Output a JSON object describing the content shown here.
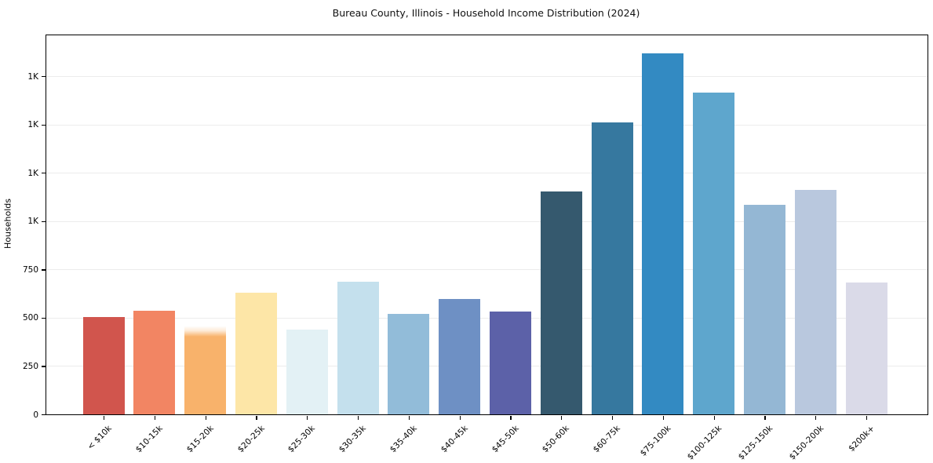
{
  "title": "Bureau County, Illinois - Household Income Distribution (2024)",
  "ylabel": "Households",
  "chart_data": {
    "type": "bar",
    "title": "Bureau County, Illinois - Household Income Distribution (2024)",
    "xlabel": "",
    "ylabel": "Households",
    "categories": [
      "< $10k",
      "$10-15k",
      "$15-20k",
      "$20-25k",
      "$25-30k",
      "$30-35k",
      "$35-40k",
      "$40-45k",
      "$45-50k",
      "$50-60k",
      "$60-75k",
      "$75-100k",
      "$100-125k",
      "$125-150k",
      "$150-200k",
      "$200k+"
    ],
    "values": [
      503,
      537,
      455,
      629,
      440,
      688,
      522,
      597,
      532,
      1152,
      1511,
      1869,
      1666,
      1083,
      1161,
      684
    ],
    "bar_colors": [
      "#d1554d",
      "#f28563",
      "#f8b26b",
      "#fde6a7",
      "#e3f1f5",
      "#c4e0ed",
      "#92bcd9",
      "#6e90c4",
      "#5c61a8",
      "#35596e",
      "#36789f",
      "#338ac2",
      "#5ea6cd",
      "#94b7d4",
      "#b9c8de",
      "#dadae8"
    ],
    "faded_top_bar_indexes": [
      2
    ],
    "ylim": [
      0,
      1962
    ],
    "yticks": [
      {
        "value": 0,
        "label": "0"
      },
      {
        "value": 250,
        "label": "250"
      },
      {
        "value": 500,
        "label": "500"
      },
      {
        "value": 750,
        "label": "750"
      },
      {
        "value": 1000,
        "label": "1K"
      },
      {
        "value": 1250,
        "label": "1K"
      },
      {
        "value": 1500,
        "label": "1K"
      },
      {
        "value": 1750,
        "label": "1K"
      }
    ],
    "grid": true,
    "legend": false,
    "x_tick_rotation_deg": 45
  },
  "colors": {
    "background": "#ffffff",
    "grid": "#ececec",
    "spine": "#000000",
    "text": "#000000"
  }
}
